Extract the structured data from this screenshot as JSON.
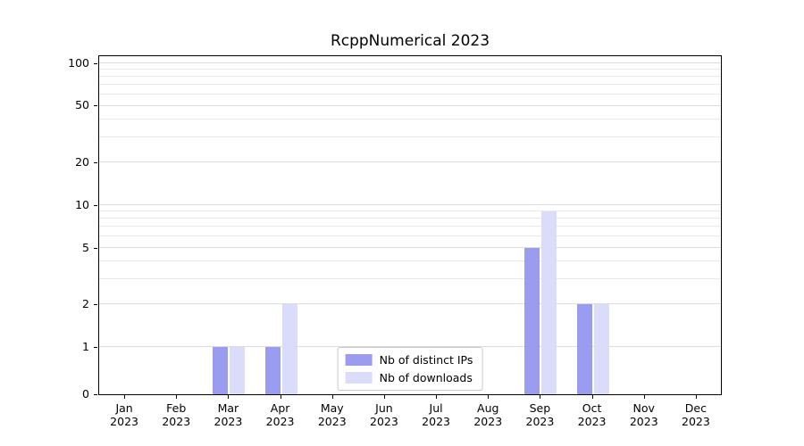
{
  "chart_data": {
    "type": "bar",
    "title": "RcppNumerical 2023",
    "categories": [
      "Jan\n2023",
      "Feb\n2023",
      "Mar\n2023",
      "Apr\n2023",
      "May\n2023",
      "Jun\n2023",
      "Jul\n2023",
      "Aug\n2023",
      "Sep\n2023",
      "Oct\n2023",
      "Nov\n2023",
      "Dec\n2023"
    ],
    "series": [
      {
        "name": "Nb of distinct IPs",
        "color": "#9a9cf0",
        "values": [
          0,
          0,
          1,
          1,
          0,
          0,
          0,
          0,
          5,
          2,
          0,
          0
        ]
      },
      {
        "name": "Nb of downloads",
        "color": "#dadcfa",
        "values": [
          0,
          0,
          1,
          2,
          0,
          0,
          0,
          0,
          9,
          2,
          0,
          0
        ]
      }
    ],
    "xlabel": "",
    "ylabel": "",
    "yscale": "log-like with linear segment from 0 to 1",
    "yticks": [
      0,
      1,
      2,
      5,
      10,
      20,
      50,
      100
    ],
    "ytick_labels": [
      "0",
      "1",
      "2",
      "5",
      "10",
      "20",
      "50",
      "100"
    ],
    "ylim": [
      0,
      100
    ],
    "grid": "horizontal faint log gridlines",
    "legend_position": "lower center",
    "legend_frame_color": "#c9c9c9",
    "axis_color": "#000000",
    "background_color": "#ffffff"
  }
}
